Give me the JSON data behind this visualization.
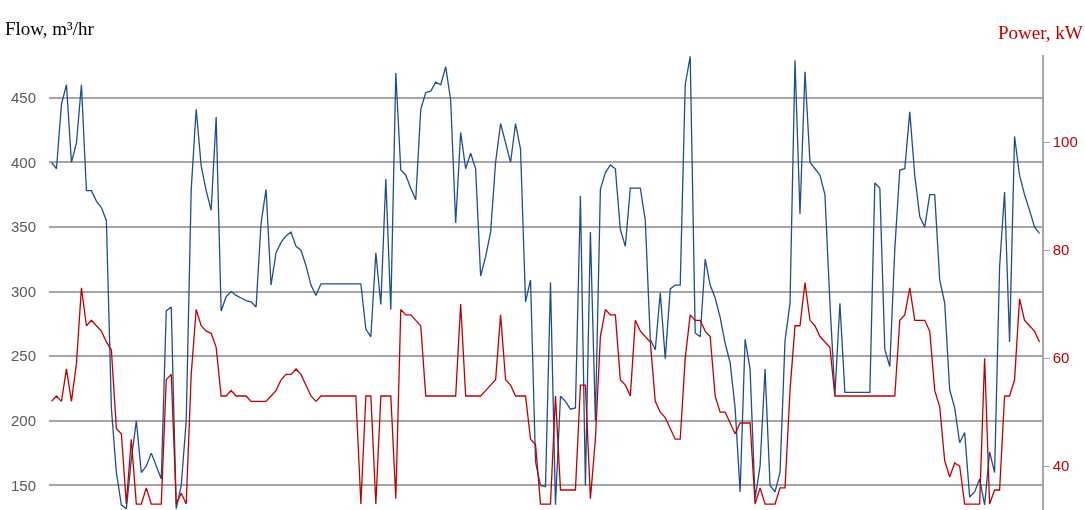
{
  "chart_data": {
    "type": "line",
    "ylabel": "Flow, m³/hr",
    "y2label": "Power, kW",
    "categories": [
      null,
      null,
      null,
      null,
      null,
      null,
      null,
      null,
      null,
      null,
      null,
      null,
      null,
      null,
      null,
      null,
      null,
      null,
      null,
      null,
      null,
      null,
      null,
      null,
      null,
      null,
      null,
      null,
      null,
      null,
      null,
      null,
      null,
      null,
      null,
      null,
      null,
      null,
      null,
      null,
      null,
      null,
      null,
      null,
      null,
      null,
      null,
      null,
      null,
      null,
      null,
      null,
      null,
      null,
      null,
      null,
      null,
      null,
      null,
      null,
      null,
      null,
      null,
      null,
      null,
      null,
      null,
      null,
      null,
      null,
      null,
      null,
      null,
      null,
      null,
      null,
      null,
      null,
      null,
      null,
      null,
      null,
      null,
      null,
      null,
      null,
      null,
      null,
      null,
      null,
      null,
      null,
      null,
      null,
      null,
      null,
      null,
      null,
      null,
      null,
      null,
      null,
      null,
      null,
      null,
      null,
      null,
      null,
      null,
      null,
      null,
      null,
      null,
      null,
      null,
      null,
      null,
      null,
      null,
      null,
      null,
      null,
      null,
      null,
      null,
      null,
      null,
      null,
      null,
      null,
      null,
      null,
      null,
      null,
      null,
      null,
      null,
      null,
      null,
      null,
      null,
      null,
      null,
      null,
      null,
      null,
      null,
      null,
      null,
      null,
      null,
      null,
      null,
      null,
      null,
      null,
      null,
      null,
      null,
      null,
      null,
      null,
      null,
      null,
      null,
      null,
      null,
      null,
      null,
      null,
      null,
      null,
      null,
      null,
      null,
      null,
      null,
      null,
      null,
      null,
      null,
      null,
      null,
      null,
      null,
      null,
      null,
      null,
      null,
      null,
      null,
      null,
      null,
      null,
      null,
      null,
      null,
      null,
      null
    ],
    "ylim": [
      131,
      483
    ],
    "yticks": [
      150,
      200,
      250,
      300,
      350,
      400,
      450
    ],
    "y2lim": [
      31.9,
      116.1
    ],
    "y2ticks": [
      40,
      60,
      80,
      100
    ],
    "grid": "y",
    "marker": "none",
    "line_style": "solid",
    "series": [
      {
        "color": "#1f4e8c",
        "values": [
          400,
          395,
          445,
          460,
          400,
          415,
          460,
          378,
          378,
          370,
          365,
          355,
          210,
          160,
          135,
          132,
          170,
          200,
          160,
          165,
          175,
          165,
          155,
          285,
          288,
          132,
          150,
          200,
          379,
          441,
          397,
          378,
          363,
          435,
          285,
          296,
          300,
          297,
          295,
          293,
          292,
          288,
          353,
          379,
          305,
          330,
          338,
          343,
          346,
          335,
          332,
          320,
          305,
          297,
          306,
          306,
          306,
          306,
          306,
          306,
          306,
          306,
          306,
          271,
          265,
          330,
          290,
          387,
          286,
          469,
          394,
          390,
          380,
          371,
          441,
          454,
          455,
          462,
          460,
          474,
          448,
          353,
          423,
          395,
          407,
          395,
          312,
          327,
          346,
          400,
          430,
          415,
          400,
          430,
          410,
          292,
          309,
          168,
          150,
          149,
          307,
          135,
          219,
          215,
          209,
          210,
          374,
          150,
          346,
          200,
          379,
          392,
          398,
          395,
          348,
          335,
          380,
          380,
          380,
          355,
          263,
          255,
          299,
          248,
          302,
          305,
          305,
          460,
          482,
          268,
          265,
          325,
          305,
          295,
          280,
          260,
          245,
          210,
          145,
          263,
          240,
          140,
          165,
          240,
          150,
          145,
          160,
          262,
          291,
          479,
          360,
          470,
          400,
          395,
          390,
          375,
          291,
          220,
          291,
          222,
          222,
          222,
          222,
          222,
          222,
          384,
          380,
          255,
          242,
          333,
          394,
          395,
          439,
          390,
          358,
          350,
          375,
          375,
          309,
          291,
          224,
          210,
          183,
          191,
          141,
          145,
          155,
          135,
          176,
          160,
          319,
          377,
          261,
          420,
          390,
          375,
          363,
          350,
          345
        ]
      },
      {
        "color": "#c00000",
        "axis": "y2",
        "values": [
          52,
          53,
          52,
          58,
          52,
          59,
          73,
          66,
          67,
          66,
          65,
          63,
          61.5,
          47,
          46,
          33,
          45,
          33,
          33,
          36,
          33,
          33,
          33,
          56,
          57,
          33,
          35,
          33,
          57,
          69,
          66,
          65,
          64.6,
          62,
          53,
          53,
          54,
          53,
          53,
          53,
          52,
          52,
          52,
          52,
          53,
          54,
          56,
          57,
          57,
          58,
          57,
          55,
          53,
          52,
          53,
          53,
          53,
          53,
          53,
          53,
          53,
          53,
          33,
          53,
          53,
          33,
          53,
          53,
          53,
          34,
          69,
          68,
          68,
          67,
          66,
          53,
          53,
          53,
          53,
          53,
          53,
          53,
          70,
          53,
          53,
          53,
          53,
          54,
          55,
          56,
          68,
          56,
          55,
          53,
          53,
          53,
          45,
          44,
          33,
          33,
          33,
          53,
          35.6,
          35.6,
          35.6,
          35.6,
          55,
          55,
          34,
          45,
          64,
          69,
          68,
          68,
          56,
          55,
          53,
          67,
          65,
          64,
          63,
          52,
          50,
          49,
          47,
          45,
          45,
          60,
          68,
          67,
          67,
          65,
          64,
          53,
          50,
          50,
          48,
          46,
          48,
          48,
          48,
          33,
          36,
          33,
          33,
          33,
          36,
          36,
          54,
          66,
          66,
          74,
          67,
          66,
          64,
          63,
          62,
          53,
          53,
          53,
          53,
          53,
          53,
          53,
          53,
          53,
          53,
          53,
          53,
          53,
          67,
          68,
          73,
          67,
          67,
          67,
          65,
          54,
          51,
          41,
          38,
          40.6,
          40,
          33,
          33,
          33,
          33,
          60,
          33,
          35.6,
          35.6,
          53,
          53,
          56,
          71,
          67,
          66,
          65,
          63
        ]
      }
    ]
  }
}
